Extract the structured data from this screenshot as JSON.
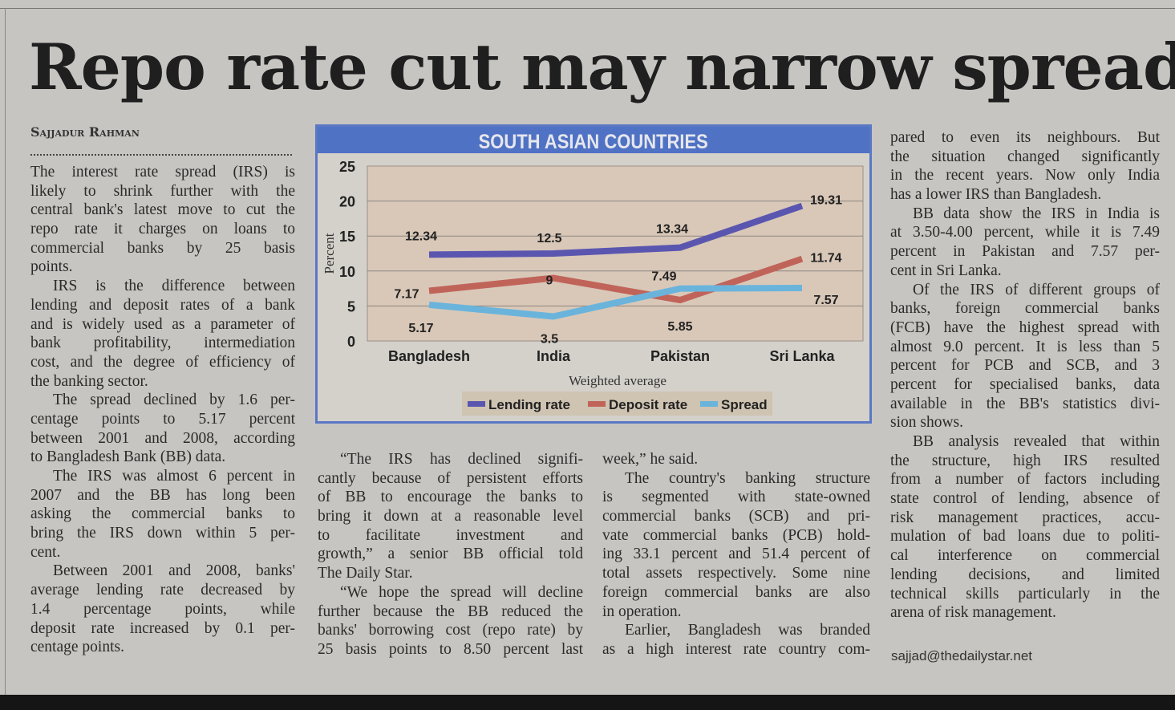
{
  "headline": "Repo rate cut may narrow spread",
  "byline": "Sajjadur Rahman",
  "columns": [
    [
      [
        "The interest rate spread (IRS) is",
        "likely to shrink further with the",
        "central bank's latest move to cut the",
        "repo rate it charges on loans to",
        "commercial banks by 25 basis",
        "points."
      ],
      [
        "IRS is the difference between",
        "lending and deposit rates of a bank",
        "and is widely used as a parameter of",
        "bank profitability, intermediation",
        "cost, and the degree of efficiency of",
        "the banking sector."
      ],
      [
        "The spread declined by 1.6 per-",
        "centage points to 5.17 percent",
        "between 2001 and 2008, according",
        "to Bangladesh Bank (BB) data."
      ],
      [
        "The IRS was almost 6 percent in",
        "2007 and the BB has long been",
        "asking the commercial banks to",
        "bring the IRS down within 5 per-",
        "cent."
      ],
      [
        "Between 2001 and 2008, banks'",
        "average lending rate decreased by",
        "1.4 percentage points, while",
        "deposit rate increased by 0.1 per-",
        "centage points."
      ]
    ],
    [
      [
        "“The IRS has declined signifi-",
        "cantly because of persistent efforts",
        "of BB to encourage the banks to",
        "bring it down at a reasonable level",
        "to facilitate investment and",
        "growth,” a senior BB official told",
        "The Daily Star."
      ],
      [
        "“We hope the spread will decline",
        "further because the BB reduced the",
        "banks' borrowing cost (repo rate) by",
        "25 basis points to 8.50 percent last"
      ]
    ],
    [
      [
        "week,” he said."
      ],
      [
        "The country's banking structure",
        "is segmented with state-owned",
        "commercial banks (SCB) and pri-",
        "vate commercial banks (PCB) hold-",
        "ing 33.1 percent and 51.4 percent of",
        "total assets respectively. Some nine",
        "foreign commercial banks are also",
        "in operation."
      ],
      [
        "Earlier, Bangladesh was branded",
        "as a high interest rate country com-"
      ]
    ],
    [
      [
        "pared to even its neighbours. But",
        "the situation changed significantly",
        "in the recent years. Now only India",
        "has a lower IRS than Bangladesh."
      ],
      [
        "BB data show the IRS in India is",
        "at 3.50-4.00 percent, while it is 7.49",
        "percent in Pakistan and 7.57 per-",
        "cent in Sri Lanka."
      ],
      [
        "Of the IRS of different groups of",
        "banks, foreign commercial banks",
        "(FCB) have the highest spread with",
        "almost 9.0 percent. It is less than 5",
        "percent for PCB and SCB, and 3",
        "percent for specialised banks, data",
        "available in the BB's statistics divi-",
        "sion shows."
      ],
      [
        "BB analysis revealed that within",
        "the structure, high IRS resulted",
        "from a number of factors including",
        "state control of lending, absence of",
        "risk management practices, accu-",
        "mulation of bad loans due to politi-",
        "cal interference on commercial",
        "lending decisions, and limited",
        "technical skills particularly in the",
        "arena of risk management."
      ]
    ]
  ],
  "email": "sajjad@thedailystar.net",
  "chart_data": {
    "type": "line",
    "title": "SOUTH ASIAN COUNTRIES",
    "xlabel": "Weighted average",
    "ylabel": "Percent",
    "ylim": [
      0,
      25
    ],
    "yticks": [
      "0",
      "5",
      "10",
      "15",
      "20",
      "25"
    ],
    "grid": true,
    "legend_position": "bottom",
    "categories": [
      "Bangladesh",
      "India",
      "Pakistan",
      "Sri Lanka"
    ],
    "series": [
      {
        "name": "Lending rate",
        "color": "#5a56b0",
        "values": [
          12.34,
          12.5,
          13.34,
          19.31
        ],
        "labels": [
          "12.34",
          "12.5",
          "13.34",
          "19.31"
        ]
      },
      {
        "name": "Deposit rate",
        "color": "#c0645a",
        "values": [
          7.17,
          9,
          5.85,
          11.74
        ],
        "labels": [
          "7.17",
          "9",
          "5.85",
          "11.74"
        ]
      },
      {
        "name": "Spread",
        "color": "#6ab4dc",
        "values": [
          5.17,
          3.5,
          7.49,
          7.57
        ],
        "labels": [
          "5.17",
          "3.5",
          "7.49",
          "7.57"
        ]
      }
    ],
    "colors": {
      "title_bar": "#4f72c4",
      "plot_bg": "#d9c8b8"
    }
  }
}
